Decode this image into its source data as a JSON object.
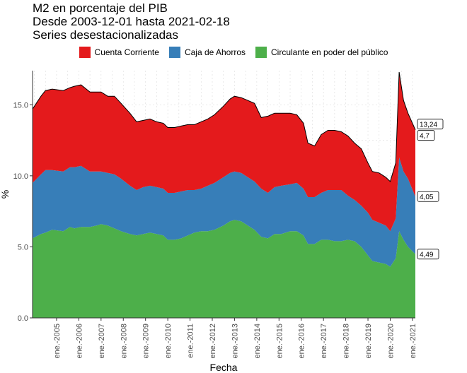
{
  "chart_data": {
    "type": "area",
    "title_lines": [
      "M2 en porcentaje del PIB",
      "Desde 2003-12-01 hasta 2021-02-18",
      "Series desestacionalizadas"
    ],
    "xlabel": "Fecha",
    "ylabel": "%",
    "xlim": [
      2003.92,
      2021.13
    ],
    "ylim": [
      0,
      17.4
    ],
    "y_ticks": [
      "0.0",
      "5.0",
      "10.0",
      "15.0"
    ],
    "y_tick_values": [
      0,
      5,
      10,
      15
    ],
    "x_tick_labels": [
      "ene.-2005",
      "ene.-2006",
      "ene.-2007",
      "ene.-2008",
      "ene.-2009",
      "ene.-2010",
      "ene.-2011",
      "ene.-2012",
      "ene.-2013",
      "ene.-2014",
      "ene.-2015",
      "ene.-2016",
      "ene.-2017",
      "ene.-2018",
      "ene.-2019",
      "ene.-2020",
      "ene.-2021"
    ],
    "x_tick_values": [
      2005,
      2006,
      2007,
      2008,
      2009,
      2010,
      2011,
      2012,
      2013,
      2014,
      2015,
      2016,
      2017,
      2018,
      2019,
      2020,
      2021
    ],
    "grid": true,
    "stacked": true,
    "legend_position": "top",
    "x": [
      2003.92,
      2004.3,
      2004.5,
      2004.8,
      2005.3,
      2005.6,
      2005.8,
      2006.1,
      2006.5,
      2006.8,
      2007.0,
      2007.3,
      2007.6,
      2007.9,
      2008.3,
      2008.6,
      2008.9,
      2009.2,
      2009.5,
      2009.8,
      2010.0,
      2010.3,
      2010.6,
      2010.9,
      2011.2,
      2011.5,
      2011.8,
      2012.1,
      2012.5,
      2012.8,
      2013.0,
      2013.3,
      2013.6,
      2013.9,
      2014.2,
      2014.5,
      2014.8,
      2015.1,
      2015.5,
      2015.8,
      2016.1,
      2016.3,
      2016.6,
      2016.9,
      2017.2,
      2017.5,
      2017.8,
      2018.1,
      2018.4,
      2018.7,
      2019.0,
      2019.2,
      2019.5,
      2019.8,
      2020.0,
      2020.25,
      2020.4,
      2020.6,
      2020.8,
      2021.13
    ],
    "series": [
      {
        "name": "Circulante en poder del público",
        "color": "#4DAF4A",
        "values": [
          5.6,
          5.9,
          6.0,
          6.2,
          6.1,
          6.4,
          6.3,
          6.4,
          6.4,
          6.5,
          6.6,
          6.5,
          6.3,
          6.1,
          5.9,
          5.8,
          5.9,
          6.0,
          5.9,
          5.8,
          5.5,
          5.5,
          5.6,
          5.8,
          6.0,
          6.1,
          6.1,
          6.2,
          6.5,
          6.8,
          6.9,
          6.8,
          6.5,
          6.2,
          5.7,
          5.6,
          5.9,
          5.9,
          6.1,
          6.1,
          5.8,
          5.2,
          5.2,
          5.5,
          5.5,
          5.4,
          5.4,
          5.5,
          5.4,
          5.0,
          4.4,
          4.0,
          3.9,
          3.8,
          3.6,
          4.2,
          6.1,
          5.5,
          5.0,
          4.49
        ]
      },
      {
        "name": "Caja de Ahorros",
        "color": "#377EB8",
        "values": [
          3.9,
          4.2,
          4.4,
          4.2,
          4.2,
          4.2,
          4.3,
          4.3,
          3.9,
          3.8,
          3.7,
          3.7,
          3.8,
          3.7,
          3.4,
          3.2,
          3.3,
          3.3,
          3.3,
          3.3,
          3.3,
          3.3,
          3.3,
          3.2,
          3.0,
          3.0,
          3.2,
          3.3,
          3.4,
          3.4,
          3.4,
          3.4,
          3.4,
          3.4,
          3.4,
          3.2,
          3.3,
          3.4,
          3.3,
          3.4,
          3.3,
          3.3,
          3.3,
          3.3,
          3.5,
          3.6,
          3.6,
          3.1,
          2.9,
          2.9,
          3.0,
          2.9,
          2.8,
          2.7,
          2.5,
          2.8,
          5.2,
          4.8,
          4.8,
          4.05
        ]
      },
      {
        "name": "Cuenta Corriente",
        "color": "#E41A1C",
        "values": [
          5.2,
          5.5,
          5.6,
          5.7,
          5.7,
          5.6,
          5.7,
          5.7,
          5.6,
          5.6,
          5.6,
          5.4,
          5.5,
          5.3,
          5.1,
          4.8,
          4.7,
          4.7,
          4.6,
          4.6,
          4.6,
          4.6,
          4.6,
          4.6,
          4.6,
          4.7,
          4.7,
          4.8,
          5.0,
          5.2,
          5.3,
          5.3,
          5.4,
          5.5,
          5.0,
          5.4,
          5.2,
          5.1,
          5.0,
          4.8,
          4.6,
          3.8,
          3.6,
          4.1,
          4.2,
          4.2,
          4.1,
          4.2,
          4.0,
          4.0,
          3.5,
          3.4,
          3.5,
          3.4,
          3.5,
          3.9,
          6.0,
          5.0,
          4.6,
          4.7
        ]
      }
    ],
    "end_labels": [
      "13,24",
      "4,7",
      "4,05",
      "4,49"
    ],
    "end_label_values": [
      13.24,
      13.24,
      8.54,
      4.49
    ]
  }
}
